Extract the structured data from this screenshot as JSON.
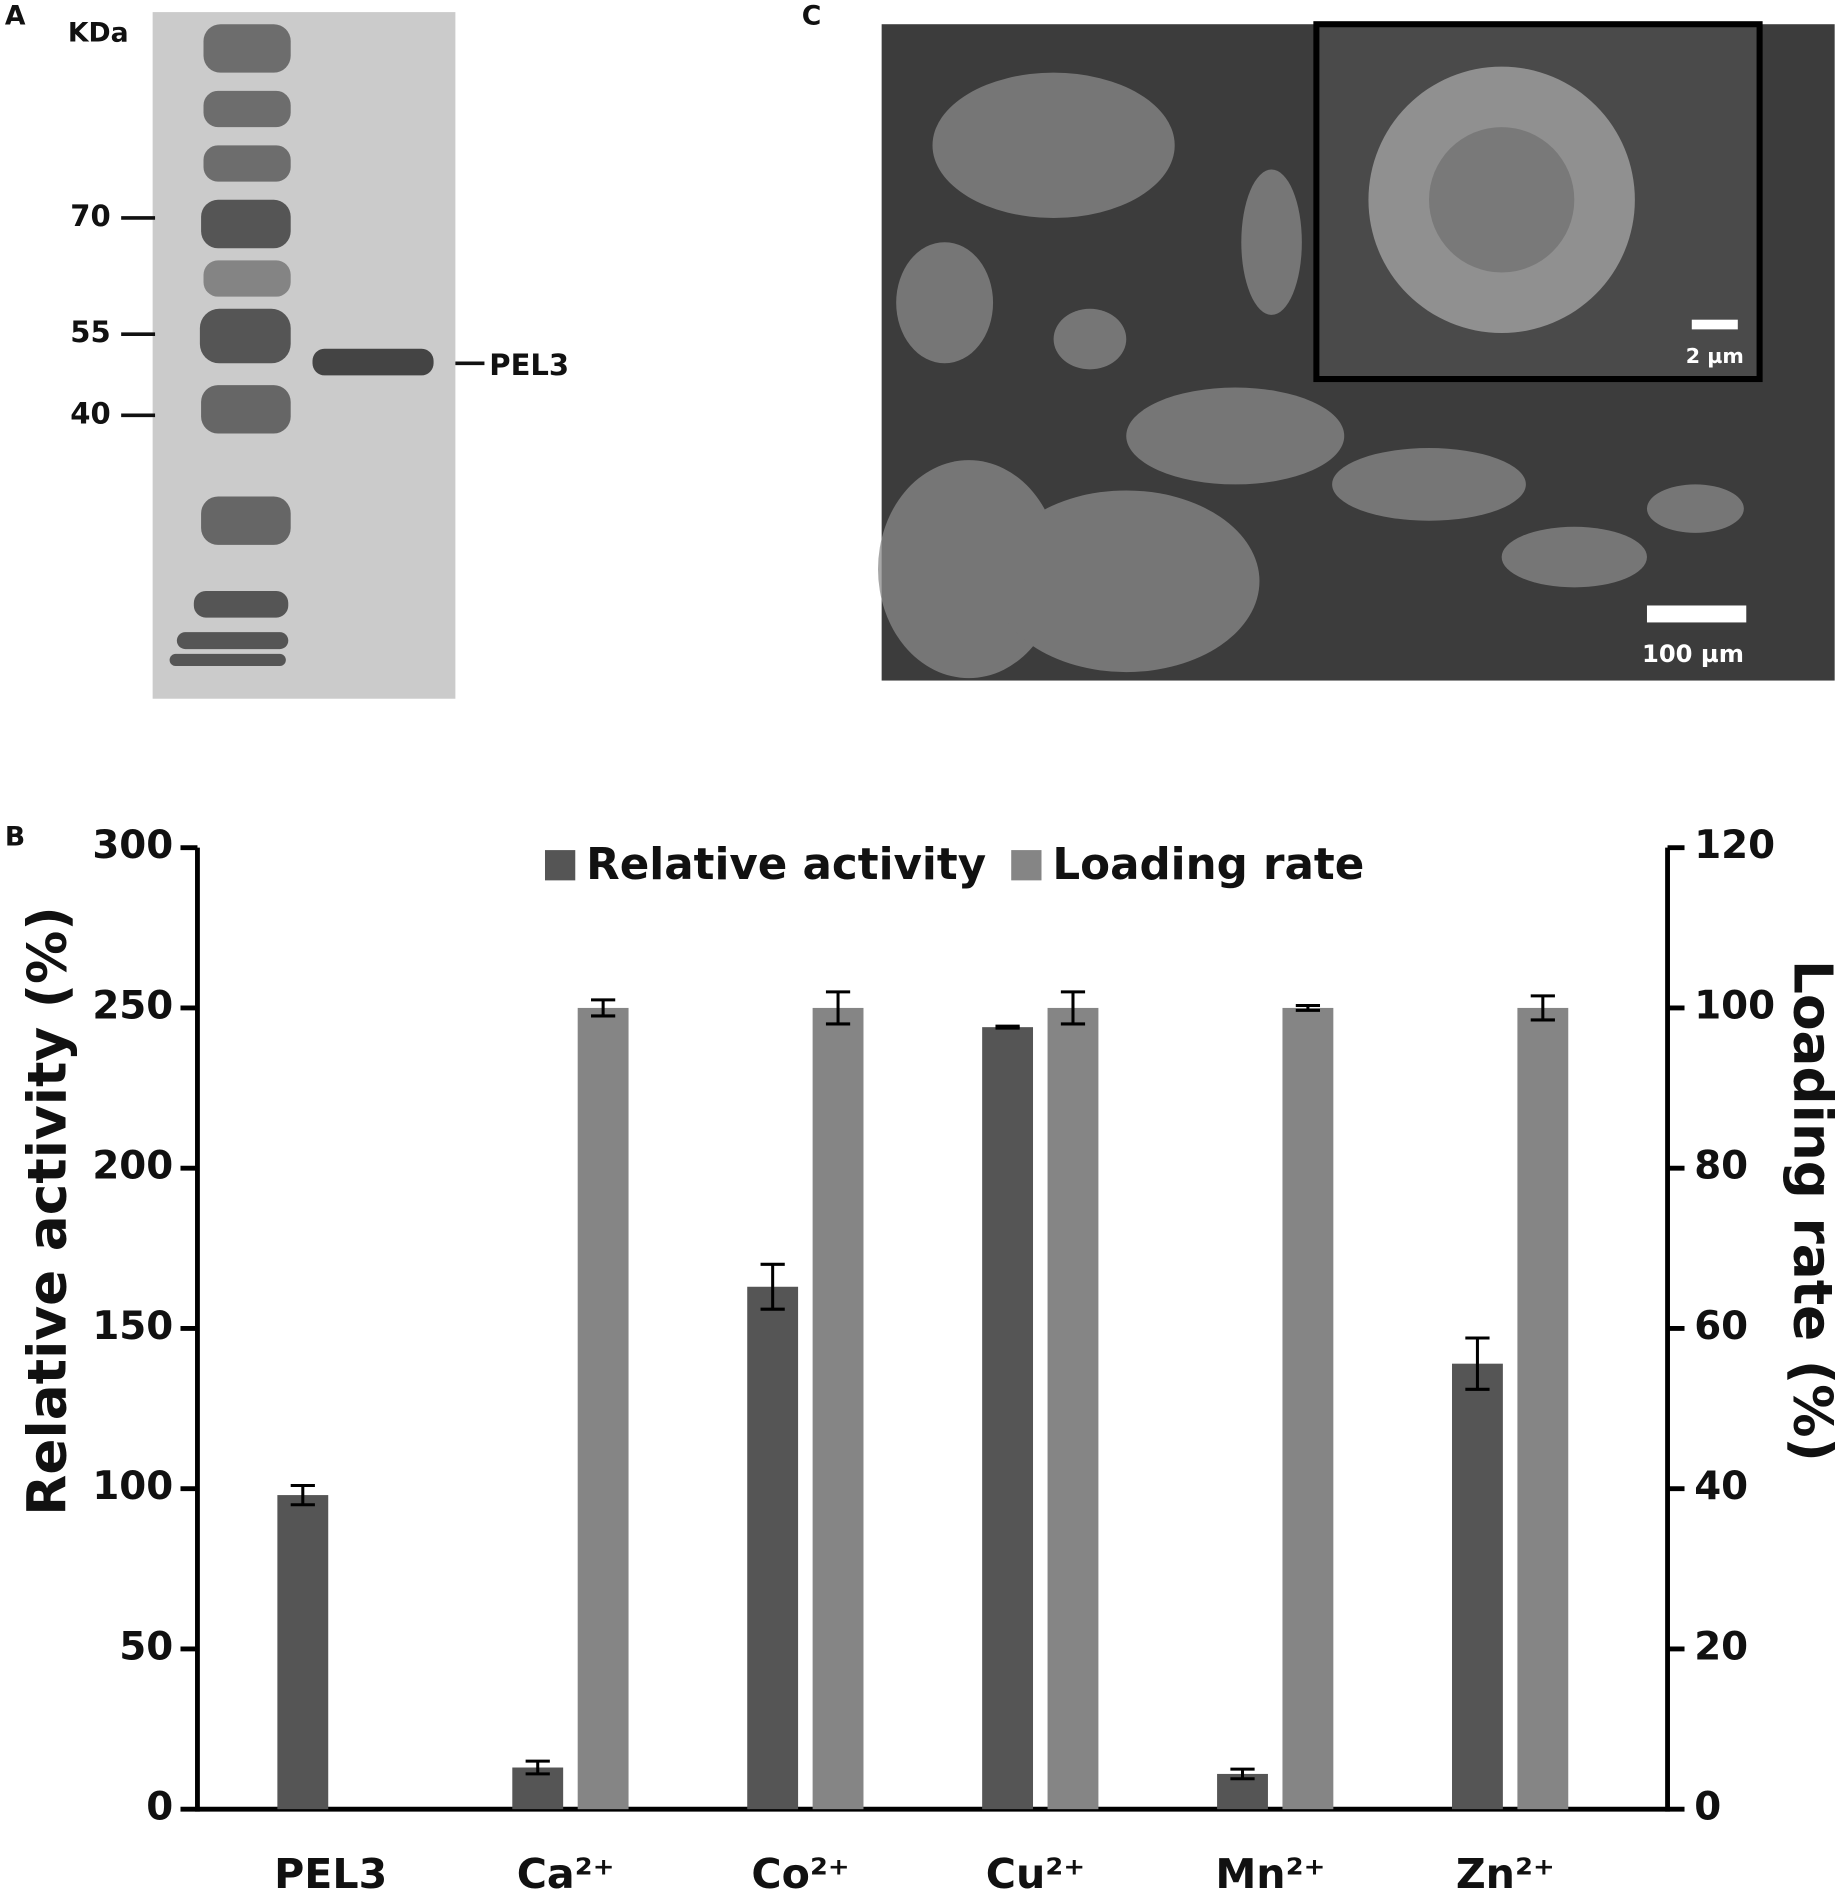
{
  "panel_a": {
    "label": "A",
    "unit": "KDa",
    "markers": [
      "70",
      "55",
      "40"
    ],
    "band_label": "PEL3"
  },
  "panel_c": {
    "label": "C",
    "inset_scale": "2 µm",
    "scale": "100 µm"
  },
  "chart_data": {
    "type": "bar",
    "label": "B",
    "categories": [
      "PEL3",
      "Ca²⁺",
      "Co²⁺",
      "Cu²⁺",
      "Mn²⁺",
      "Zn²⁺"
    ],
    "series": [
      {
        "name": "Relative activity",
        "color": "#555555",
        "values": [
          98,
          13,
          163,
          244,
          11,
          139
        ],
        "errors": [
          3,
          2,
          7,
          0.3,
          1.5,
          8
        ]
      },
      {
        "name": "Loading rate",
        "color": "#858585",
        "axis": "y2",
        "values": [
          null,
          100,
          100,
          100,
          100,
          100
        ],
        "errors": [
          null,
          1,
          2,
          2,
          0.3,
          1.5
        ]
      }
    ],
    "ylabel": "Relative activity (%)",
    "y2label": "Loading rate (%)",
    "ylim": [
      0,
      300
    ],
    "yticks": [
      0,
      50,
      100,
      150,
      200,
      250,
      300
    ],
    "y2lim": [
      0,
      120
    ],
    "y2ticks": [
      0,
      20,
      40,
      60,
      80,
      100,
      120
    ],
    "legend": "top"
  }
}
